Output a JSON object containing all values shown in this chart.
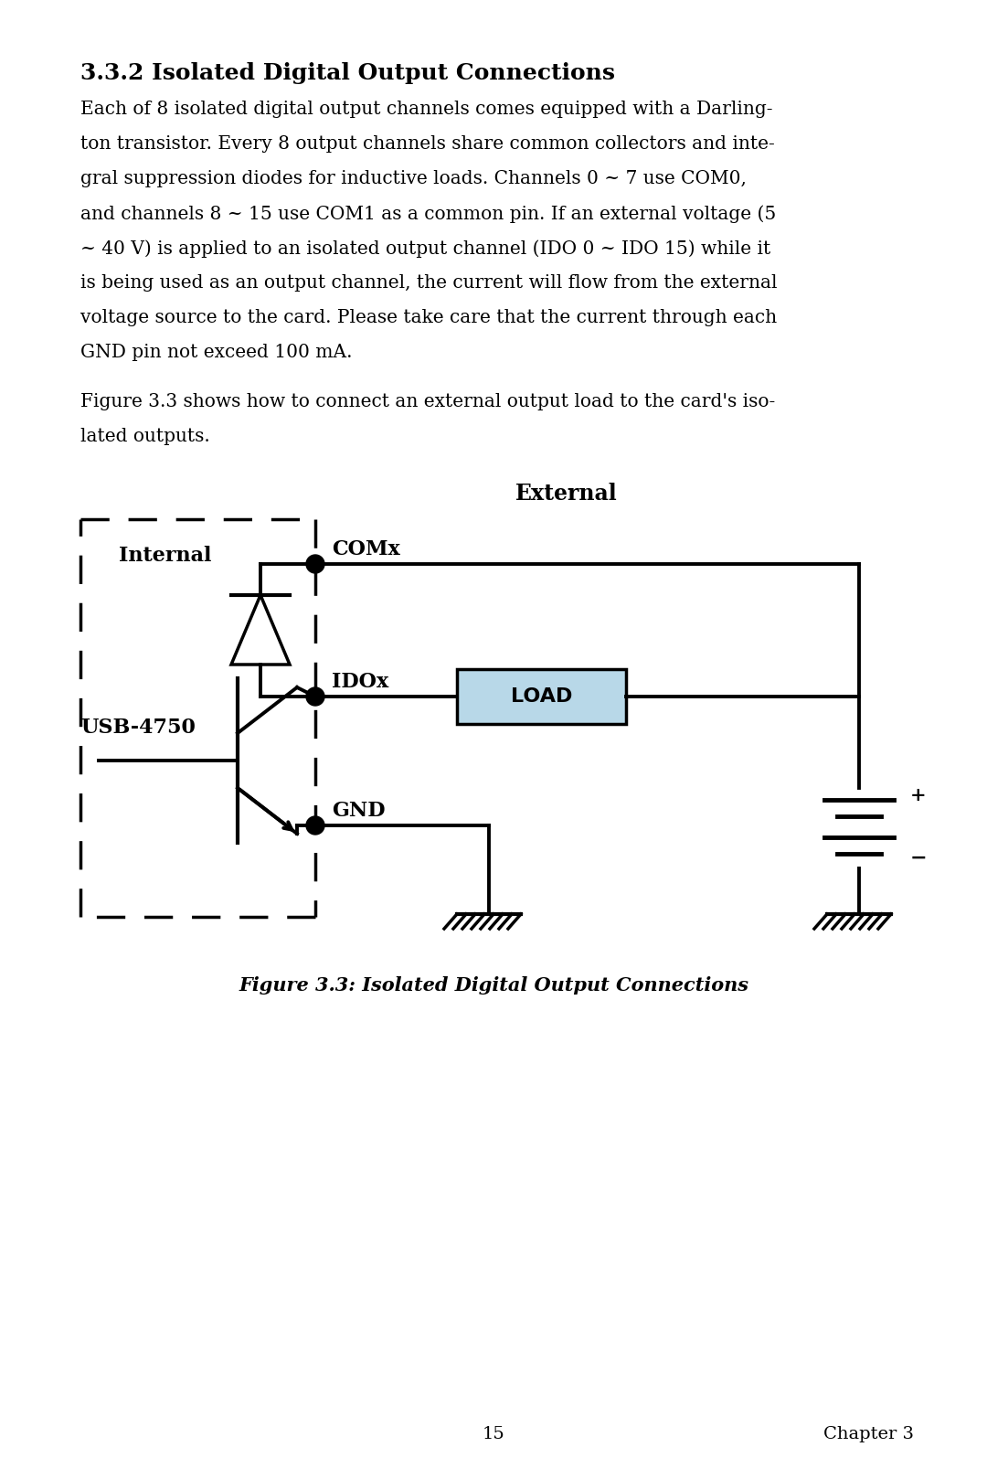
{
  "title": "3.3.2 Isolated Digital Output Connections",
  "body_lines": [
    "Each of 8 isolated digital output channels comes equipped with a Darling-",
    "ton transistor. Every 8 output channels share common collectors and inte-",
    "gral suppression diodes for inductive loads. Channels 0 ~ 7 use COM0,",
    "and channels 8 ~ 15 use COM1 as a common pin. If an external voltage (5",
    "~ 40 V) is applied to an isolated output channel (IDO 0 ~ IDO 15) while it",
    "is being used as an output channel, the current will flow from the external",
    "voltage source to the card. Please take care that the current through each",
    "GND pin not exceed 100 mA."
  ],
  "figure_intro_line1": "Figure 3.3 shows how to connect an external output load to the card's iso-",
  "figure_intro_line2": "lated outputs.",
  "label_external": "External",
  "label_internal": "Internal",
  "label_comx": "COMx",
  "label_idox": "IDOx",
  "label_gnd": "GND",
  "label_load": "LOAD",
  "label_usb": "USB-4750",
  "label_plus": "+",
  "label_minus": "−",
  "figure_caption": "Figure 3.3: Isolated Digital Output Connections",
  "page_number": "15",
  "chapter": "Chapter 3",
  "bg_color": "#ffffff",
  "text_color": "#000000",
  "load_fill": "#b8d8e8",
  "line_color": "#000000"
}
